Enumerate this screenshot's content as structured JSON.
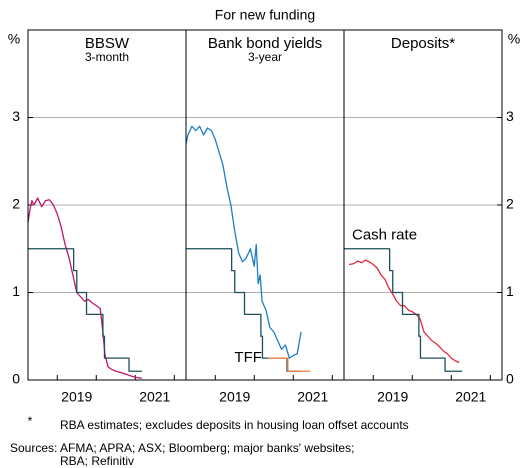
{
  "figure": {
    "subtitle": "For new funding",
    "ylabel": "%",
    "notes": [
      "*",
      "RBA estimates; excludes deposits in housing loan offset accounts",
      "Sources: AFMA; APRA; ASX; Bloomberg; major banks' websites;",
      "RBA; Refinitiv"
    ]
  },
  "chart_data": [
    {
      "type": "line",
      "title": "BBSW",
      "subtitle": "3-month",
      "xlim": [
        2018.25,
        2022.3
      ],
      "xticks": [
        2019,
        2020,
        2021,
        2022
      ],
      "xlabels": [
        {
          "value": 2019.5,
          "label": "2019"
        },
        {
          "value": 2021.5,
          "label": "2021"
        }
      ],
      "ylim": [
        0,
        4
      ],
      "yticks": [
        0,
        1,
        2,
        3
      ],
      "grid": true,
      "series": [
        {
          "color": "#c0166c",
          "x": [
            2018.25,
            2018.3,
            2018.35,
            2018.4,
            2018.5,
            2018.6,
            2018.7,
            2018.8,
            2018.9,
            2019.0,
            2019.1,
            2019.2,
            2019.3,
            2019.4,
            2019.5,
            2019.6,
            2019.7,
            2019.8,
            2019.9,
            2020.0,
            2020.1,
            2020.17,
            2020.22,
            2020.3,
            2020.4,
            2020.5,
            2020.6,
            2020.8,
            2021.0,
            2021.17
          ],
          "values": [
            1.8,
            1.95,
            2.05,
            2.0,
            2.08,
            1.98,
            2.05,
            2.06,
            2.0,
            1.9,
            1.75,
            1.55,
            1.4,
            1.2,
            1.0,
            0.95,
            0.9,
            0.92,
            0.88,
            0.85,
            0.82,
            0.55,
            0.3,
            0.15,
            0.12,
            0.1,
            0.09,
            0.06,
            0.03,
            0.02
          ]
        },
        {
          "color": "#1d4f5c",
          "x": [
            2018.25,
            2019.42,
            2019.42,
            2019.5,
            2019.5,
            2019.75,
            2019.75,
            2020.17,
            2020.17,
            2020.21,
            2020.21,
            2020.84,
            2020.84,
            2021.17
          ],
          "values": [
            1.5,
            1.5,
            1.25,
            1.25,
            1.0,
            1.0,
            0.75,
            0.75,
            0.5,
            0.5,
            0.25,
            0.25,
            0.1,
            0.1
          ]
        }
      ]
    },
    {
      "type": "line",
      "title": "Bank bond yields",
      "subtitle": "3-year",
      "xlim": [
        2018.25,
        2022.3
      ],
      "xticks": [
        2019,
        2020,
        2021,
        2022
      ],
      "xlabels": [
        {
          "value": 2019.5,
          "label": "2019"
        },
        {
          "value": 2021.5,
          "label": "2021"
        }
      ],
      "ylim": [
        0,
        4
      ],
      "yticks": [
        0,
        1,
        2,
        3
      ],
      "grid": true,
      "series": [
        {
          "color": "#1a7fc8",
          "x": [
            2018.25,
            2018.3,
            2018.4,
            2018.5,
            2018.6,
            2018.7,
            2018.8,
            2018.9,
            2019.0,
            2019.1,
            2019.2,
            2019.3,
            2019.4,
            2019.5,
            2019.6,
            2019.7,
            2019.8,
            2019.9,
            2020.0,
            2020.05,
            2020.1,
            2020.15,
            2020.2,
            2020.3,
            2020.4,
            2020.5,
            2020.6,
            2020.7,
            2020.8,
            2020.9,
            2021.0,
            2021.1,
            2021.2
          ],
          "values": [
            2.7,
            2.8,
            2.9,
            2.85,
            2.9,
            2.8,
            2.88,
            2.85,
            2.75,
            2.6,
            2.45,
            2.2,
            2.0,
            1.7,
            1.45,
            1.35,
            1.4,
            1.5,
            1.3,
            1.55,
            1.1,
            1.2,
            0.9,
            0.8,
            0.6,
            0.55,
            0.45,
            0.35,
            0.4,
            0.25,
            0.28,
            0.3,
            0.55
          ]
        },
        {
          "color": "#1d4f5c",
          "x": [
            2018.25,
            2019.42,
            2019.42,
            2019.5,
            2019.5,
            2019.75,
            2019.75,
            2020.17,
            2020.17,
            2020.21,
            2020.21,
            2020.84,
            2020.84,
            2021.2
          ],
          "values": [
            1.5,
            1.5,
            1.25,
            1.25,
            1.0,
            1.0,
            0.75,
            0.75,
            0.5,
            0.5,
            0.25,
            0.25,
            0.1,
            0.1
          ]
        },
        {
          "name": "TFF",
          "color": "#f5813c",
          "x": [
            2020.35,
            2020.86,
            2020.86,
            2021.43
          ],
          "values": [
            0.25,
            0.25,
            0.1,
            0.1
          ]
        }
      ]
    },
    {
      "type": "line",
      "title": "Deposits*",
      "xlim": [
        2018.25,
        2022.3
      ],
      "xticks": [
        2019,
        2020,
        2021,
        2022
      ],
      "xlabels": [
        {
          "value": 2019.5,
          "label": "2019"
        },
        {
          "value": 2021.5,
          "label": "2021"
        }
      ],
      "ylim": [
        0,
        4
      ],
      "yticks": [
        0,
        1,
        2,
        3
      ],
      "grid": true,
      "series": [
        {
          "color": "#e5263c",
          "x": [
            2018.38,
            2018.5,
            2018.6,
            2018.7,
            2018.8,
            2018.9,
            2019.0,
            2019.1,
            2019.2,
            2019.3,
            2019.4,
            2019.5,
            2019.6,
            2019.7,
            2019.8,
            2019.9,
            2020.0,
            2020.1,
            2020.2,
            2020.3,
            2020.4,
            2020.5,
            2020.6,
            2020.7,
            2020.8,
            2020.9,
            2021.0,
            2021.1,
            2021.2
          ],
          "values": [
            1.32,
            1.33,
            1.36,
            1.34,
            1.37,
            1.35,
            1.32,
            1.28,
            1.2,
            1.15,
            1.05,
            0.98,
            0.9,
            0.85,
            0.85,
            0.8,
            0.78,
            0.75,
            0.7,
            0.55,
            0.5,
            0.45,
            0.42,
            0.38,
            0.33,
            0.3,
            0.25,
            0.22,
            0.2
          ]
        },
        {
          "name": "Cash rate",
          "color": "#1d4f5c",
          "x": [
            2018.25,
            2019.42,
            2019.42,
            2019.5,
            2019.5,
            2019.75,
            2019.75,
            2020.17,
            2020.17,
            2020.21,
            2020.21,
            2020.84,
            2020.84,
            2021.28
          ],
          "values": [
            1.5,
            1.5,
            1.25,
            1.25,
            1.0,
            1.0,
            0.75,
            0.75,
            0.5,
            0.5,
            0.25,
            0.25,
            0.1,
            0.1
          ]
        }
      ]
    }
  ]
}
